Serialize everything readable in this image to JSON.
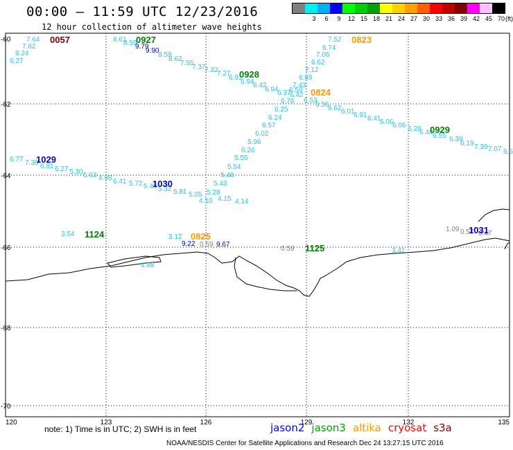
{
  "header": {
    "title": "00:00 – 11:59 UTC 12/23/2016",
    "subtitle": "12 hour collection of altimeter wave heights"
  },
  "legend": {
    "unit": "(ft)",
    "bins": [
      {
        "color": "#808080",
        "label": ""
      },
      {
        "color": "#00f0f0",
        "label": "3"
      },
      {
        "color": "#00b0f0",
        "label": "6"
      },
      {
        "color": "#0000ff",
        "label": "9"
      },
      {
        "color": "#00ff00",
        "label": "12"
      },
      {
        "color": "#00d000",
        "label": "15"
      },
      {
        "color": "#00a000",
        "label": "18"
      },
      {
        "color": "#ffff00",
        "label": "21"
      },
      {
        "color": "#ffd000",
        "label": "24"
      },
      {
        "color": "#ffa000",
        "label": "27"
      },
      {
        "color": "#ff6000",
        "label": "30"
      },
      {
        "color": "#ff0000",
        "label": "33"
      },
      {
        "color": "#c00000",
        "label": "36"
      },
      {
        "color": "#800000",
        "label": "39"
      },
      {
        "color": "#ff00ff",
        "label": "42"
      },
      {
        "color": "#ffc0ff",
        "label": "45"
      },
      {
        "color": "#000000",
        "label": "70"
      }
    ]
  },
  "axes": {
    "lat_labels": [
      "-60",
      "-62",
      "-64",
      "-66",
      "-68",
      "-70"
    ],
    "lon_labels": [
      "120",
      "123",
      "126",
      "129",
      "132",
      "135"
    ]
  },
  "time_tags": [
    {
      "text": "0057",
      "color": "#800000"
    },
    {
      "text": "0927",
      "color": "#008000"
    },
    {
      "text": "0823",
      "color": "#ff9900"
    },
    {
      "text": "0928",
      "color": "#008000"
    },
    {
      "text": "0824",
      "color": "#ff9900"
    },
    {
      "text": "0929",
      "color": "#008000"
    },
    {
      "text": "1029",
      "color": "#0000cc"
    },
    {
      "text": "1030",
      "color": "#0000cc"
    },
    {
      "text": "1124",
      "color": "#008000"
    },
    {
      "text": "0825",
      "color": "#ff9900"
    },
    {
      "text": "1125",
      "color": "#008000"
    },
    {
      "text": "1031",
      "color": "#0000cc"
    }
  ],
  "observations": [
    {
      "v": "7.64",
      "c": "#22c4e6"
    },
    {
      "v": "7.62",
      "c": "#22c4e6"
    },
    {
      "v": "8.24",
      "c": "#22c4e6"
    },
    {
      "v": "6.27",
      "c": "#22c4e6"
    },
    {
      "v": "8.61",
      "c": "#22c4e6"
    },
    {
      "v": "8.59",
      "c": "#22c4e6"
    },
    {
      "v": "9.79",
      "c": "#0000cc"
    },
    {
      "v": "9.90",
      "c": "#0000cc"
    },
    {
      "v": "8.59",
      "c": "#22c4e6"
    },
    {
      "v": "8.62",
      "c": "#22c4e6"
    },
    {
      "v": "7.55",
      "c": "#22c4e6"
    },
    {
      "v": "7.37",
      "c": "#22c4e6"
    },
    {
      "v": "7.32",
      "c": "#22c4e6"
    },
    {
      "v": "7.27",
      "c": "#22c4e6"
    },
    {
      "v": "6.91",
      "c": "#22c4e6"
    },
    {
      "v": "6.94",
      "c": "#22c4e6"
    },
    {
      "v": "6.42",
      "c": "#22c4e6"
    },
    {
      "v": "6.94",
      "c": "#22c4e6"
    },
    {
      "v": "6.37",
      "c": "#22c4e6"
    },
    {
      "v": "6.59",
      "c": "#22c4e6"
    },
    {
      "v": "7.52",
      "c": "#22c4e6"
    },
    {
      "v": "6.74",
      "c": "#22c4e6"
    },
    {
      "v": "7.06",
      "c": "#22c4e6"
    },
    {
      "v": "6.62",
      "c": "#22c4e6"
    },
    {
      "v": "7.12",
      "c": "#22c4e6"
    },
    {
      "v": "6.89",
      "c": "#22c4e6"
    },
    {
      "v": "7.43",
      "c": "#22c4e6"
    },
    {
      "v": "6.42",
      "c": "#22c4e6"
    },
    {
      "v": "6.76",
      "c": "#22c4e6"
    },
    {
      "v": "6.53",
      "c": "#22c4e6"
    },
    {
      "v": "6.25",
      "c": "#22c4e6"
    },
    {
      "v": "6.56",
      "c": "#22c4e6"
    },
    {
      "v": "6.62",
      "c": "#22c4e6"
    },
    {
      "v": "6.01",
      "c": "#22c4e6"
    },
    {
      "v": "6.91",
      "c": "#22c4e6"
    },
    {
      "v": "6.41",
      "c": "#22c4e6"
    },
    {
      "v": "6.06",
      "c": "#22c4e6"
    },
    {
      "v": "6.06",
      "c": "#22c4e6"
    },
    {
      "v": "6.28",
      "c": "#22c4e6"
    },
    {
      "v": "6.44",
      "c": "#22c4e6"
    },
    {
      "v": "6.55",
      "c": "#22c4e6"
    },
    {
      "v": "6.39",
      "c": "#22c4e6"
    },
    {
      "v": "6.19",
      "c": "#22c4e6"
    },
    {
      "v": "7.39",
      "c": "#22c4e6"
    },
    {
      "v": "7.07",
      "c": "#22c4e6"
    },
    {
      "v": "6.5",
      "c": "#22c4e6"
    },
    {
      "v": "6.24",
      "c": "#22c4e6"
    },
    {
      "v": "6.57",
      "c": "#22c4e6"
    },
    {
      "v": "6.02",
      "c": "#22c4e6"
    },
    {
      "v": "5.96",
      "c": "#22c4e6"
    },
    {
      "v": "6.26",
      "c": "#22c4e6"
    },
    {
      "v": "5.55",
      "c": "#22c4e6"
    },
    {
      "v": "5.54",
      "c": "#22c4e6"
    },
    {
      "v": "5.48",
      "c": "#22c4e6"
    },
    {
      "v": "5.43",
      "c": "#22c4e6"
    },
    {
      "v": "5.28",
      "c": "#22c4e6"
    },
    {
      "v": "4.10",
      "c": "#22c4e6"
    },
    {
      "v": "4.15",
      "c": "#22c4e6"
    },
    {
      "v": "4.14",
      "c": "#22c4e6"
    },
    {
      "v": "6.77",
      "c": "#22c4e6"
    },
    {
      "v": "7.30",
      "c": "#22c4e6"
    },
    {
      "v": "6.81",
      "c": "#22c4e6"
    },
    {
      "v": "6.27",
      "c": "#22c4e6"
    },
    {
      "v": "5.30",
      "c": "#22c4e6"
    },
    {
      "v": "5.93",
      "c": "#22c4e6"
    },
    {
      "v": "4.98",
      "c": "#22c4e6"
    },
    {
      "v": "6.41",
      "c": "#22c4e6"
    },
    {
      "v": "5.72",
      "c": "#22c4e6"
    },
    {
      "v": "5.46",
      "c": "#22c4e6"
    },
    {
      "v": "5.32",
      "c": "#22c4e6"
    },
    {
      "v": "5.81",
      "c": "#22c4e6"
    },
    {
      "v": "5.05",
      "c": "#22c4e6"
    },
    {
      "v": "3.54",
      "c": "#22c4e6"
    },
    {
      "v": "3.12",
      "c": "#22c4e6"
    },
    {
      "v": "9.22",
      "c": "#0000cc"
    },
    {
      "v": "0.59",
      "c": "#808080"
    },
    {
      "v": "9.67",
      "c": "#0000cc"
    },
    {
      "v": "0.59",
      "c": "#808080"
    },
    {
      "v": "4.98",
      "c": "#22c4e6"
    },
    {
      "v": "3.41",
      "c": "#22c4e6"
    },
    {
      "v": "1.09",
      "c": "#808080"
    },
    {
      "v": "0.57",
      "c": "#808080"
    },
    {
      "v": "0.47",
      "c": "#808080"
    }
  ],
  "footer": {
    "note": "note: 1) Time is in UTC; 2) SWH is in feet",
    "satellites": [
      {
        "name": "jason2",
        "color": "#0000ff"
      },
      {
        "name": "jason3",
        "color": "#00a000"
      },
      {
        "name": "altika",
        "color": "#ff9900"
      },
      {
        "name": "cryosat",
        "color": "#ff0000"
      },
      {
        "name": "s3a",
        "color": "#800000"
      }
    ],
    "credit": "NOAA/NESDIS Center for Satellite Applications and Research    Dec 24 13:27:15 UTC 2016"
  }
}
